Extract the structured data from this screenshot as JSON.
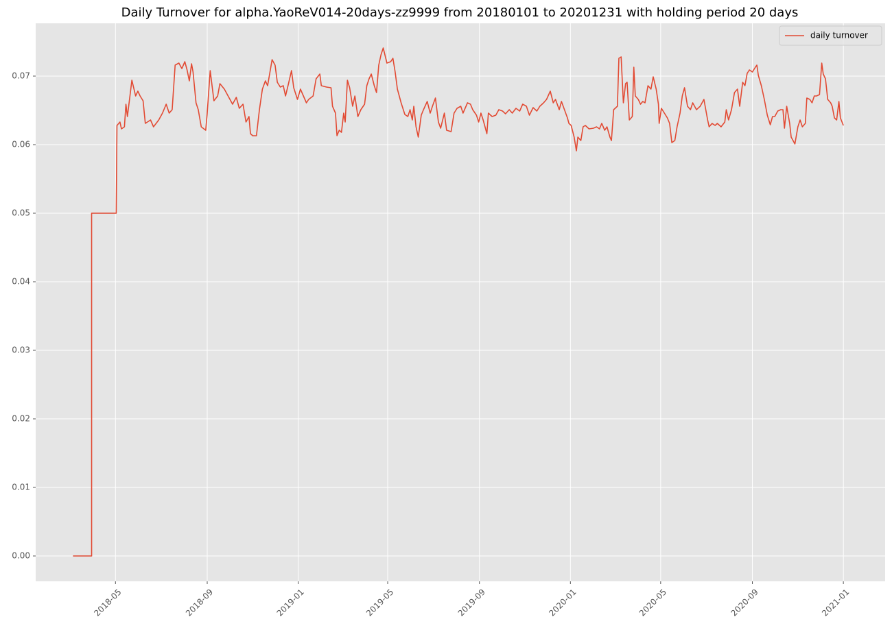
{
  "chart_data": {
    "type": "line",
    "title": "Daily Turnover for alpha.YaoReV014-20days-zz9999 from 20180101 to 20201231 with holding period 20 days",
    "x": [
      17595,
      17620,
      17620,
      17653,
      17654,
      17658,
      17660,
      17664,
      17666,
      17668,
      17674,
      17679,
      17682,
      17685,
      17689,
      17692,
      17699,
      17703,
      17710,
      17715,
      17720,
      17724,
      17728,
      17732,
      17737,
      17741,
      17745,
      17748,
      17751,
      17754,
      17756,
      17760,
      17763,
      17767,
      17773,
      17775,
      17779,
      17784,
      17789,
      17792,
      17798,
      17804,
      17809,
      17814,
      17818,
      17823,
      17827,
      17831,
      17833,
      17836,
      17841,
      17845,
      17849,
      17853,
      17856,
      17862,
      17866,
      17869,
      17873,
      17877,
      17880,
      17884,
      17888,
      17891,
      17896,
      17900,
      17904,
      17908,
      17911,
      17917,
      17921,
      17926,
      17928,
      17935,
      17941,
      17943,
      17947,
      17949,
      17952,
      17955,
      17958,
      17960,
      17963,
      17966,
      17970,
      17973,
      17977,
      17981,
      17986,
      17989,
      17992,
      17995,
      17999,
      18002,
      18005,
      18008,
      18011,
      18016,
      18021,
      18024,
      18027,
      18030,
      18035,
      18040,
      18044,
      18047,
      18050,
      18052,
      18055,
      18058,
      18062,
      18065,
      18070,
      18074,
      18077,
      18081,
      18085,
      18088,
      18093,
      18096,
      18102,
      18106,
      18110,
      18115,
      18118,
      18124,
      18128,
      18131,
      18136,
      18139,
      18142,
      18145,
      18150,
      18152,
      18157,
      18162,
      18166,
      18171,
      18175,
      18180,
      18184,
      18189,
      18194,
      18198,
      18203,
      18207,
      18212,
      18217,
      18221,
      18226,
      18230,
      18235,
      18239,
      18242,
      18247,
      18250,
      18254,
      18258,
      18260,
      18263,
      18267,
      18270,
      18272,
      18276,
      18279,
      18282,
      18287,
      18293,
      18297,
      18301,
      18304,
      18308,
      18311,
      18315,
      18317,
      18320,
      18325,
      18327,
      18330,
      18333,
      18336,
      18338,
      18341,
      18345,
      18347,
      18349,
      18353,
      18356,
      18359,
      18362,
      18366,
      18370,
      18373,
      18377,
      18380,
      18381,
      18384,
      18388,
      18392,
      18395,
      18398,
      18402,
      18405,
      18409,
      18412,
      18415,
      18419,
      18423,
      18426,
      18431,
      18436,
      18441,
      18446,
      18448,
      18452,
      18456,
      18459,
      18464,
      18469,
      18471,
      18474,
      18478,
      18482,
      18486,
      18489,
      18493,
      18496,
      18499,
      18502,
      18506,
      18510,
      18512,
      18514,
      18518,
      18522,
      18526,
      18530,
      18533,
      18536,
      18540,
      18544,
      18547,
      18549,
      18552,
      18556,
      18558,
      18563,
      18567,
      18570,
      18573,
      18577,
      18579,
      18583,
      18586,
      18589,
      18592,
      18596,
      18599,
      18601,
      18604,
      18607,
      18611,
      18613,
      18616,
      18619,
      18622,
      18624,
      18628
    ],
    "series": [
      {
        "name": "daily turnover",
        "color": "#e24a33",
        "values": [
          0,
          0,
          0.05,
          0.05,
          0.0628,
          0.0633,
          0.0623,
          0.0626,
          0.0659,
          0.0641,
          0.0694,
          0.0671,
          0.0678,
          0.0671,
          0.0664,
          0.0631,
          0.0636,
          0.0626,
          0.0636,
          0.0646,
          0.0659,
          0.0646,
          0.0651,
          0.0716,
          0.0719,
          0.0711,
          0.0721,
          0.0709,
          0.0693,
          0.0718,
          0.0706,
          0.0661,
          0.0651,
          0.0626,
          0.0621,
          0.0646,
          0.0708,
          0.0664,
          0.0671,
          0.0689,
          0.0681,
          0.0669,
          0.0659,
          0.0669,
          0.0653,
          0.0659,
          0.0633,
          0.0641,
          0.0616,
          0.0613,
          0.0613,
          0.0651,
          0.0681,
          0.0693,
          0.0686,
          0.0724,
          0.0716,
          0.0691,
          0.0684,
          0.0686,
          0.0671,
          0.0689,
          0.0708,
          0.0683,
          0.0666,
          0.0681,
          0.0671,
          0.0661,
          0.0666,
          0.0671,
          0.0696,
          0.0703,
          0.0686,
          0.0684,
          0.0683,
          0.0656,
          0.0646,
          0.0613,
          0.0621,
          0.0618,
          0.0646,
          0.0633,
          0.0694,
          0.0683,
          0.0656,
          0.0671,
          0.0641,
          0.0651,
          0.0659,
          0.0686,
          0.0696,
          0.0703,
          0.0686,
          0.0676,
          0.0716,
          0.0731,
          0.0741,
          0.0719,
          0.0721,
          0.0726,
          0.0706,
          0.0681,
          0.0661,
          0.0644,
          0.0641,
          0.0651,
          0.0636,
          0.0656,
          0.0626,
          0.0611,
          0.0643,
          0.0651,
          0.0663,
          0.0646,
          0.0656,
          0.0668,
          0.0633,
          0.0624,
          0.0646,
          0.0621,
          0.0619,
          0.0646,
          0.0653,
          0.0656,
          0.0646,
          0.0661,
          0.0659,
          0.0651,
          0.0643,
          0.0633,
          0.0646,
          0.0636,
          0.0616,
          0.0646,
          0.0641,
          0.0643,
          0.0651,
          0.0649,
          0.0645,
          0.0651,
          0.0646,
          0.0653,
          0.0649,
          0.0659,
          0.0656,
          0.0643,
          0.0654,
          0.0649,
          0.0656,
          0.0661,
          0.0666,
          0.0678,
          0.0661,
          0.0666,
          0.0651,
          0.0663,
          0.0651,
          0.0639,
          0.0631,
          0.0628,
          0.0611,
          0.0591,
          0.0611,
          0.0606,
          0.0626,
          0.0628,
          0.0623,
          0.0624,
          0.0626,
          0.0623,
          0.0631,
          0.0621,
          0.0626,
          0.0611,
          0.0606,
          0.0651,
          0.0656,
          0.0726,
          0.0728,
          0.0661,
          0.0689,
          0.0691,
          0.0636,
          0.0641,
          0.0713,
          0.0671,
          0.0666,
          0.0659,
          0.0663,
          0.0661,
          0.0686,
          0.0681,
          0.0699,
          0.0681,
          0.0659,
          0.0631,
          0.0653,
          0.0646,
          0.0639,
          0.0631,
          0.0603,
          0.0606,
          0.0626,
          0.0646,
          0.0671,
          0.0683,
          0.0656,
          0.0651,
          0.0661,
          0.0651,
          0.0656,
          0.0666,
          0.0636,
          0.0626,
          0.0631,
          0.0628,
          0.0631,
          0.0626,
          0.0633,
          0.0651,
          0.0636,
          0.0651,
          0.0676,
          0.0681,
          0.0656,
          0.0691,
          0.0686,
          0.0704,
          0.0709,
          0.0706,
          0.0713,
          0.0716,
          0.0701,
          0.0686,
          0.0666,
          0.0643,
          0.0629,
          0.0641,
          0.0641,
          0.0649,
          0.0651,
          0.0651,
          0.0624,
          0.0656,
          0.0631,
          0.0611,
          0.0601,
          0.0626,
          0.0636,
          0.0626,
          0.0631,
          0.0668,
          0.0666,
          0.0661,
          0.0671,
          0.0671,
          0.0673,
          0.0719,
          0.0703,
          0.0696,
          0.0666,
          0.0661,
          0.0656,
          0.0639,
          0.0636,
          0.0663,
          0.0639,
          0.0628
        ]
      }
    ],
    "xlim": [
      17545,
      18684
    ],
    "xticks": [
      {
        "value": 17652,
        "label": "2018-05"
      },
      {
        "value": 17775,
        "label": "2018-09"
      },
      {
        "value": 17897,
        "label": "2019-01"
      },
      {
        "value": 18017,
        "label": "2019-05"
      },
      {
        "value": 18140,
        "label": "2019-09"
      },
      {
        "value": 18262,
        "label": "2020-01"
      },
      {
        "value": 18383,
        "label": "2020-05"
      },
      {
        "value": 18506,
        "label": "2020-09"
      },
      {
        "value": 18628,
        "label": "2021-01"
      }
    ],
    "ylim": [
      -0.0037,
      0.0777
    ],
    "yticks": [
      {
        "value": 0,
        "label": "0.00"
      },
      0.01,
      0.02,
      0.03,
      0.04,
      0.05,
      0.06,
      0.07
    ],
    "grid": true,
    "legend": "upper right"
  }
}
